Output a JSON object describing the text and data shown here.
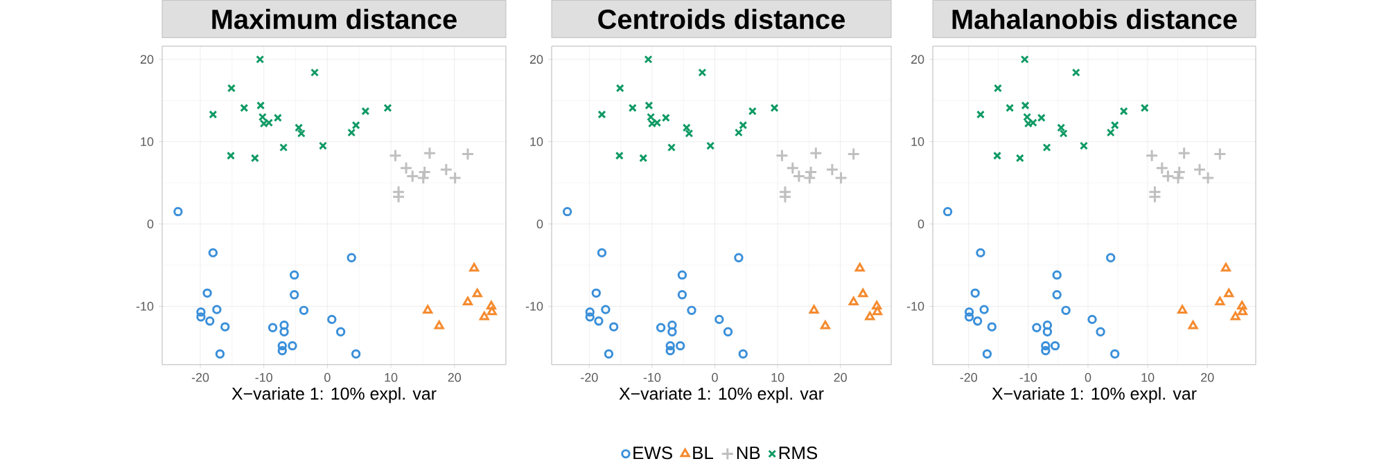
{
  "chart_data": [
    {
      "type": "scatter",
      "title": "Maximum distance",
      "xlabel": "X−variate 1: 10% expl. var",
      "xlim": [
        -26,
        28.1
      ],
      "ylim": [
        -17.1,
        21.6
      ],
      "xticks": [
        -20,
        -10,
        0,
        10,
        20
      ],
      "yticks": [
        -10,
        0,
        10,
        20
      ],
      "grid": true,
      "legend": false,
      "series": [
        {
          "color": "#3a8fd9",
          "marker": "circle",
          "x": [
            -23.5,
            -18,
            -18.9,
            -19.9,
            -19.9,
            -18.5,
            -17.4,
            -16.1,
            -16.9,
            -5.2,
            -5.2,
            -3.7,
            -8.6,
            -6.8,
            -6.8,
            -7.1,
            -7.1,
            -5.5,
            0.7,
            2.1,
            3.8,
            4.5
          ],
          "values": [
            1.5,
            -3.5,
            -8.4,
            -10.7,
            -11.3,
            -11.8,
            -10.4,
            -12.5,
            -15.8,
            -6.2,
            -8.6,
            -10.5,
            -12.6,
            -12.3,
            -13.1,
            -14.8,
            -15.4,
            -14.8,
            -11.6,
            -13.1,
            -4.1,
            -15.8
          ]
        },
        {
          "color": "#f58a2e",
          "marker": "triangle",
          "x": [
            15.8,
            17.6,
            23.1,
            23.6,
            22.1,
            25.8,
            24.7,
            25.9
          ],
          "values": [
            -10.5,
            -12.4,
            -5.4,
            -8.5,
            -9.5,
            -10,
            -11.3,
            -10.7
          ]
        },
        {
          "color": "#bfbfbf",
          "marker": "plus",
          "x": [
            10.7,
            12.4,
            13.4,
            15.3,
            15.1,
            16.1,
            18.7,
            20.1,
            22.1,
            11.2,
            11.2
          ],
          "values": [
            8.3,
            6.8,
            5.8,
            6.3,
            5.6,
            8.6,
            6.6,
            5.6,
            8.5,
            3.9,
            3.3
          ]
        },
        {
          "color": "#0f9a64",
          "marker": "cross",
          "x": [
            -10.6,
            -2,
            -15.1,
            -18,
            -13.1,
            -10.5,
            -10.2,
            -10,
            -9.2,
            -7.8,
            -4.5,
            -4.1,
            -6.9,
            -0.7,
            3.8,
            4.5,
            6,
            9.5,
            -15.2,
            -11.4
          ],
          "values": [
            20,
            18.4,
            16.5,
            13.3,
            14.1,
            14.4,
            13,
            12.2,
            12.3,
            12.9,
            11.7,
            11,
            9.3,
            9.5,
            11.1,
            12,
            13.7,
            14.1,
            8.3,
            8
          ]
        }
      ]
    },
    {
      "type": "scatter",
      "title": "Centroids distance",
      "xlabel": "X−variate 1: 10% expl. var",
      "xlim": [
        -26,
        28.1
      ],
      "ylim": [
        -17.1,
        21.6
      ],
      "xticks": [
        -20,
        -10,
        0,
        10,
        20
      ],
      "yticks": [
        -10,
        0,
        10,
        20
      ],
      "grid": true,
      "legend": "bottom",
      "series": [
        {
          "name": "EWS",
          "color": "#3a8fd9",
          "marker": "circle",
          "x": [
            -23.5,
            -18,
            -18.9,
            -19.9,
            -19.9,
            -18.5,
            -17.4,
            -16.1,
            -16.9,
            -5.2,
            -5.2,
            -3.7,
            -8.6,
            -6.8,
            -6.8,
            -7.1,
            -7.1,
            -5.5,
            0.7,
            2.1,
            3.8,
            4.5
          ],
          "values": [
            1.5,
            -3.5,
            -8.4,
            -10.7,
            -11.3,
            -11.8,
            -10.4,
            -12.5,
            -15.8,
            -6.2,
            -8.6,
            -10.5,
            -12.6,
            -12.3,
            -13.1,
            -14.8,
            -15.4,
            -14.8,
            -11.6,
            -13.1,
            -4.1,
            -15.8
          ]
        },
        {
          "name": "BL",
          "color": "#f58a2e",
          "marker": "triangle",
          "x": [
            15.8,
            17.6,
            23.1,
            23.6,
            22.1,
            25.8,
            24.7,
            25.9
          ],
          "values": [
            -10.5,
            -12.4,
            -5.4,
            -8.5,
            -9.5,
            -10,
            -11.3,
            -10.7
          ]
        },
        {
          "name": "NB",
          "color": "#bfbfbf",
          "marker": "plus",
          "x": [
            10.7,
            12.4,
            13.4,
            15.3,
            15.1,
            16.1,
            18.7,
            20.1,
            22.1,
            11.2,
            11.2
          ],
          "values": [
            8.3,
            6.8,
            5.8,
            6.3,
            5.6,
            8.6,
            6.6,
            5.6,
            8.5,
            3.9,
            3.3
          ]
        },
        {
          "name": "RMS",
          "color": "#0f9a64",
          "marker": "cross",
          "x": [
            -10.6,
            -2,
            -15.1,
            -18,
            -13.1,
            -10.5,
            -10.2,
            -10,
            -9.2,
            -7.8,
            -4.5,
            -4.1,
            -6.9,
            -0.7,
            3.8,
            4.5,
            6,
            9.5,
            -15.2,
            -11.4
          ],
          "values": [
            20,
            18.4,
            16.5,
            13.3,
            14.1,
            14.4,
            13,
            12.2,
            12.3,
            12.9,
            11.7,
            11,
            9.3,
            9.5,
            11.1,
            12,
            13.7,
            14.1,
            8.3,
            8
          ]
        }
      ]
    },
    {
      "type": "scatter",
      "title": "Mahalanobis distance",
      "xlabel": "X−variate 1: 10% expl. var",
      "xlim": [
        -26,
        28.1
      ],
      "ylim": [
        -17.1,
        21.6
      ],
      "xticks": [
        -20,
        -10,
        0,
        10,
        20
      ],
      "yticks": [
        -10,
        0,
        10,
        20
      ],
      "grid": true,
      "legend": false,
      "series": [
        {
          "color": "#3a8fd9",
          "marker": "circle",
          "x": [
            -23.5,
            -18,
            -18.9,
            -19.9,
            -19.9,
            -18.5,
            -17.4,
            -16.1,
            -16.9,
            -5.2,
            -5.2,
            -3.7,
            -8.6,
            -6.8,
            -6.8,
            -7.1,
            -7.1,
            -5.5,
            0.7,
            2.1,
            3.8,
            4.5
          ],
          "values": [
            1.5,
            -3.5,
            -8.4,
            -10.7,
            -11.3,
            -11.8,
            -10.4,
            -12.5,
            -15.8,
            -6.2,
            -8.6,
            -10.5,
            -12.6,
            -12.3,
            -13.1,
            -14.8,
            -15.4,
            -14.8,
            -11.6,
            -13.1,
            -4.1,
            -15.8
          ]
        },
        {
          "color": "#f58a2e",
          "marker": "triangle",
          "x": [
            15.8,
            17.6,
            23.1,
            23.6,
            22.1,
            25.8,
            24.7,
            25.9
          ],
          "values": [
            -10.5,
            -12.4,
            -5.4,
            -8.5,
            -9.5,
            -10,
            -11.3,
            -10.7
          ]
        },
        {
          "color": "#bfbfbf",
          "marker": "plus",
          "x": [
            10.7,
            12.4,
            13.4,
            15.3,
            15.1,
            16.1,
            18.7,
            20.1,
            22.1,
            11.2,
            11.2
          ],
          "values": [
            8.3,
            6.8,
            5.8,
            6.3,
            5.6,
            8.6,
            6.6,
            5.6,
            8.5,
            3.9,
            3.3
          ]
        },
        {
          "color": "#0f9a64",
          "marker": "cross",
          "x": [
            -10.6,
            -2,
            -15.1,
            -18,
            -13.1,
            -10.5,
            -10.2,
            -10,
            -9.2,
            -7.8,
            -4.5,
            -4.1,
            -6.9,
            -0.7,
            3.8,
            4.5,
            6,
            9.5,
            -15.2,
            -11.4
          ],
          "values": [
            20,
            18.4,
            16.5,
            13.3,
            14.1,
            14.4,
            13,
            12.2,
            12.3,
            12.9,
            11.7,
            11,
            9.3,
            9.5,
            11.1,
            12,
            13.7,
            14.1,
            8.3,
            8
          ]
        }
      ]
    }
  ]
}
